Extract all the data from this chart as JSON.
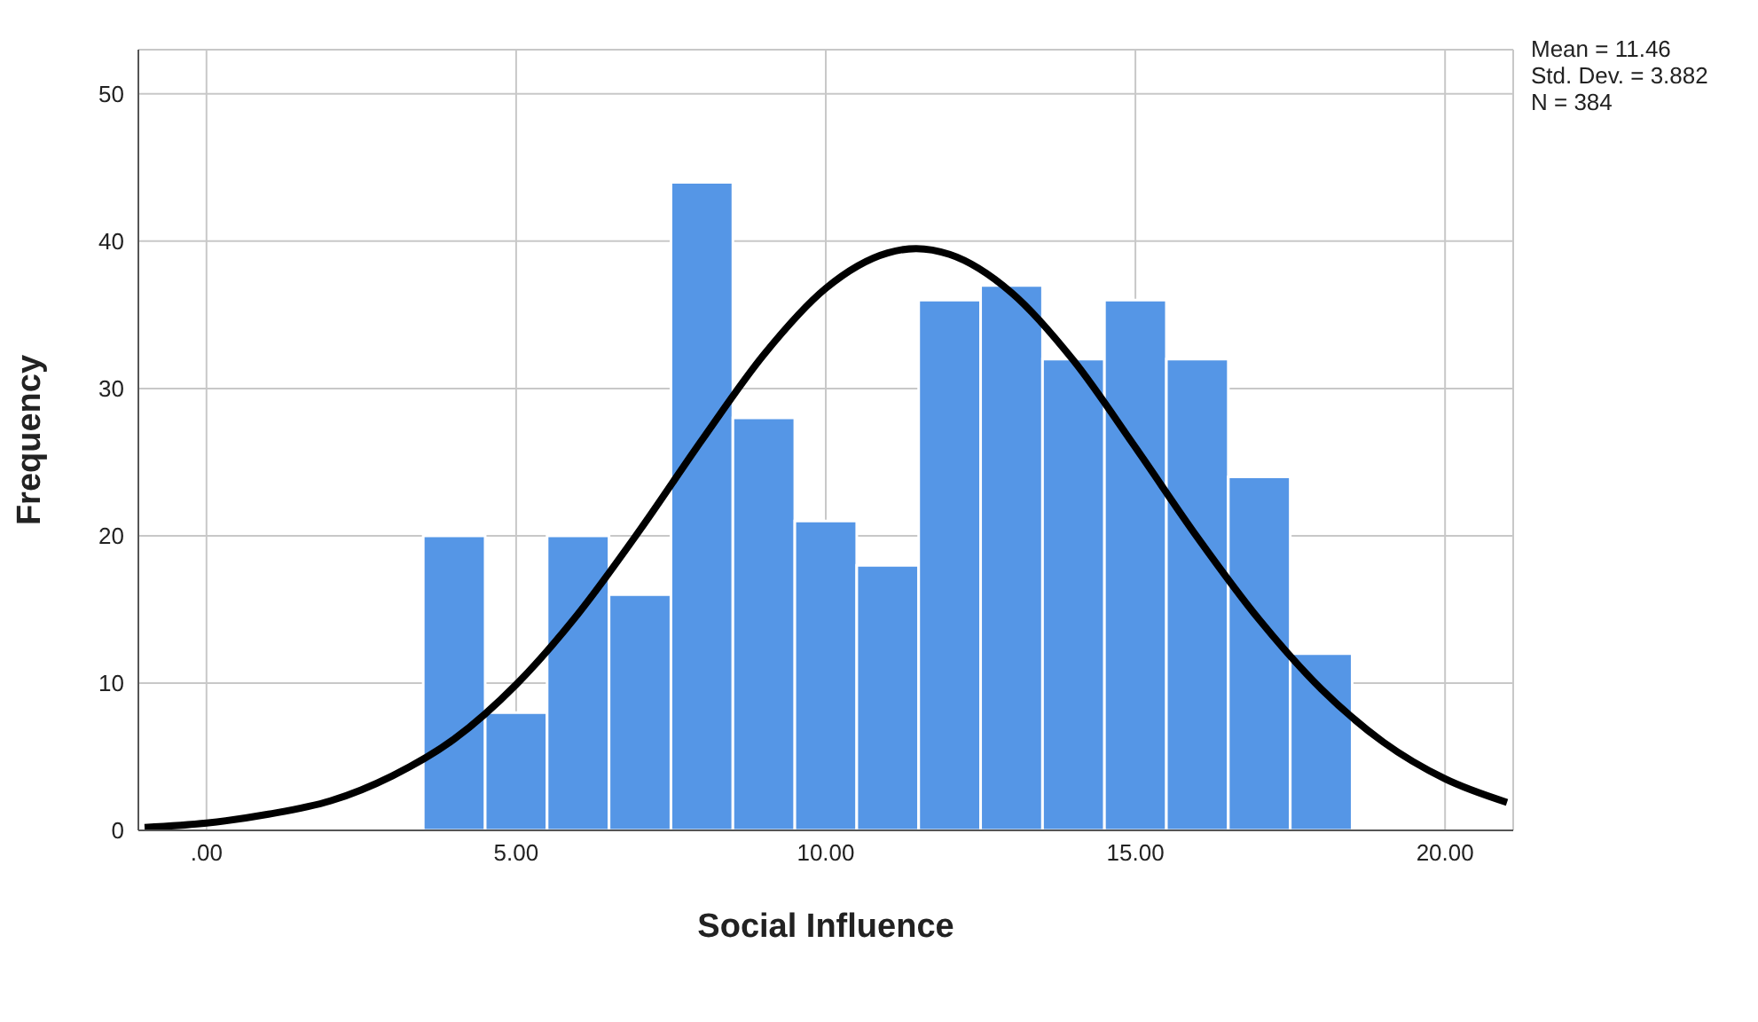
{
  "chart_data": {
    "type": "histogram",
    "xlabel": "Social Influence",
    "ylabel": "Frequency",
    "bins": [
      3.5,
      4.5,
      5.5,
      6.5,
      7.5,
      8.5,
      9.5,
      10.5,
      11.5,
      12.5,
      13.5,
      14.5,
      15.5,
      16.5,
      17.5,
      18.5
    ],
    "values": [
      20,
      8,
      20,
      16,
      44,
      28,
      21,
      18,
      36,
      37,
      32,
      36,
      32,
      24,
      12
    ],
    "color": "#5596e6",
    "series": [
      {
        "type": "line",
        "color": "#000000",
        "x": [
          -1,
          0,
          1,
          2,
          3,
          4,
          5,
          6,
          7,
          8,
          9,
          10,
          11,
          11.46,
          12,
          13,
          14,
          15,
          16,
          17,
          18,
          19,
          20,
          21
        ],
        "values": [
          0.2,
          0.5,
          1.1,
          2.0,
          3.7,
          6.2,
          9.9,
          14.7,
          20.4,
          26.5,
          32.3,
          36.8,
          39.2,
          39.5,
          39.1,
          36.5,
          31.9,
          26.0,
          19.9,
          14.3,
          9.6,
          6.0,
          3.5,
          1.9
        ]
      }
    ],
    "xlim": [
      -1.1,
      21.1
    ],
    "xticks": [
      {
        "value": 0,
        "label": ".00"
      },
      {
        "value": 5,
        "label": "5.00"
      },
      {
        "value": 10,
        "label": "10.00"
      },
      {
        "value": 15,
        "label": "15.00"
      },
      {
        "value": 20,
        "label": "20.00"
      }
    ],
    "ylim": [
      0,
      53
    ],
    "yticks": [
      0,
      10,
      20,
      30,
      40,
      50
    ],
    "grid": true,
    "legend": false,
    "annotations": [
      "Mean = 11.46",
      "Std. Dev. = 3.882",
      "N = 384"
    ]
  }
}
